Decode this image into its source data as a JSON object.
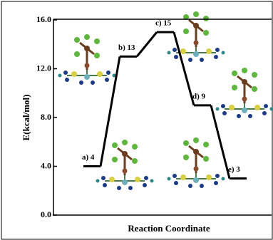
{
  "chart_data": {
    "type": "energy-profile",
    "y_label": "E(kcal/mol)",
    "x_label": "Reaction Coordinate",
    "values": [
      4,
      13,
      15,
      9,
      3
    ],
    "value_labels": [
      "a) 4",
      "b) 13",
      "c) 15",
      "d) 9",
      "e) 3"
    ],
    "color": "#000000",
    "ylim": [
      0,
      16
    ],
    "yticks": [
      {
        "value": 0,
        "label": "0.0"
      },
      {
        "value": 4,
        "label": "4.0"
      },
      {
        "value": 8,
        "label": "8.0"
      },
      {
        "value": 12,
        "label": "12.0"
      },
      {
        "value": 16,
        "label": "16.0"
      }
    ]
  }
}
